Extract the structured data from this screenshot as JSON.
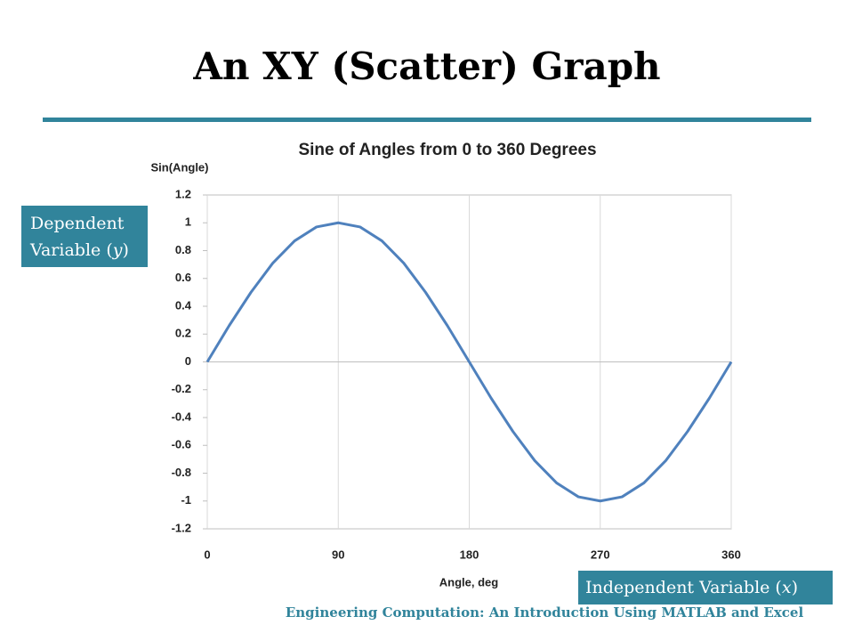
{
  "slide_title": "An XY (Scatter) Graph",
  "dependent_callout": {
    "line1": "Dependent",
    "line2": [
      "Variable (",
      "y",
      ")"
    ]
  },
  "independent_callout": [
    "Independent Variable (",
    "x",
    ")"
  ],
  "footer": "Engineering Computation: An Introduction Using MATLAB and Excel",
  "chart_data": {
    "type": "line",
    "title": "Sine of Angles from 0 to 360 Degrees",
    "x_label": "Angle, deg",
    "y_label": "Sin(Angle)",
    "x": [
      0,
      15,
      30,
      45,
      60,
      75,
      90,
      105,
      120,
      135,
      150,
      165,
      180,
      195,
      210,
      225,
      240,
      255,
      270,
      285,
      300,
      315,
      330,
      345,
      360
    ],
    "series": [
      {
        "name": "Sin(Angle)",
        "color": "#4f81bd",
        "values": [
          0,
          0.26,
          0.5,
          0.71,
          0.87,
          0.97,
          1,
          0.97,
          0.87,
          0.71,
          0.5,
          0.26,
          0,
          -0.26,
          -0.5,
          -0.71,
          -0.87,
          -0.97,
          -1,
          -0.97,
          -0.87,
          -0.71,
          -0.5,
          -0.26,
          0
        ]
      }
    ],
    "xlim": [
      0,
      360
    ],
    "xticks": [
      0,
      90,
      180,
      270,
      360
    ],
    "ylim": [
      -1.2,
      1.2
    ],
    "yticks": [
      -1.2,
      -1,
      -0.8,
      -0.6,
      -0.4,
      -0.2,
      0,
      0.2,
      0.4,
      0.6,
      0.8,
      1,
      1.2
    ],
    "grid": "x"
  }
}
